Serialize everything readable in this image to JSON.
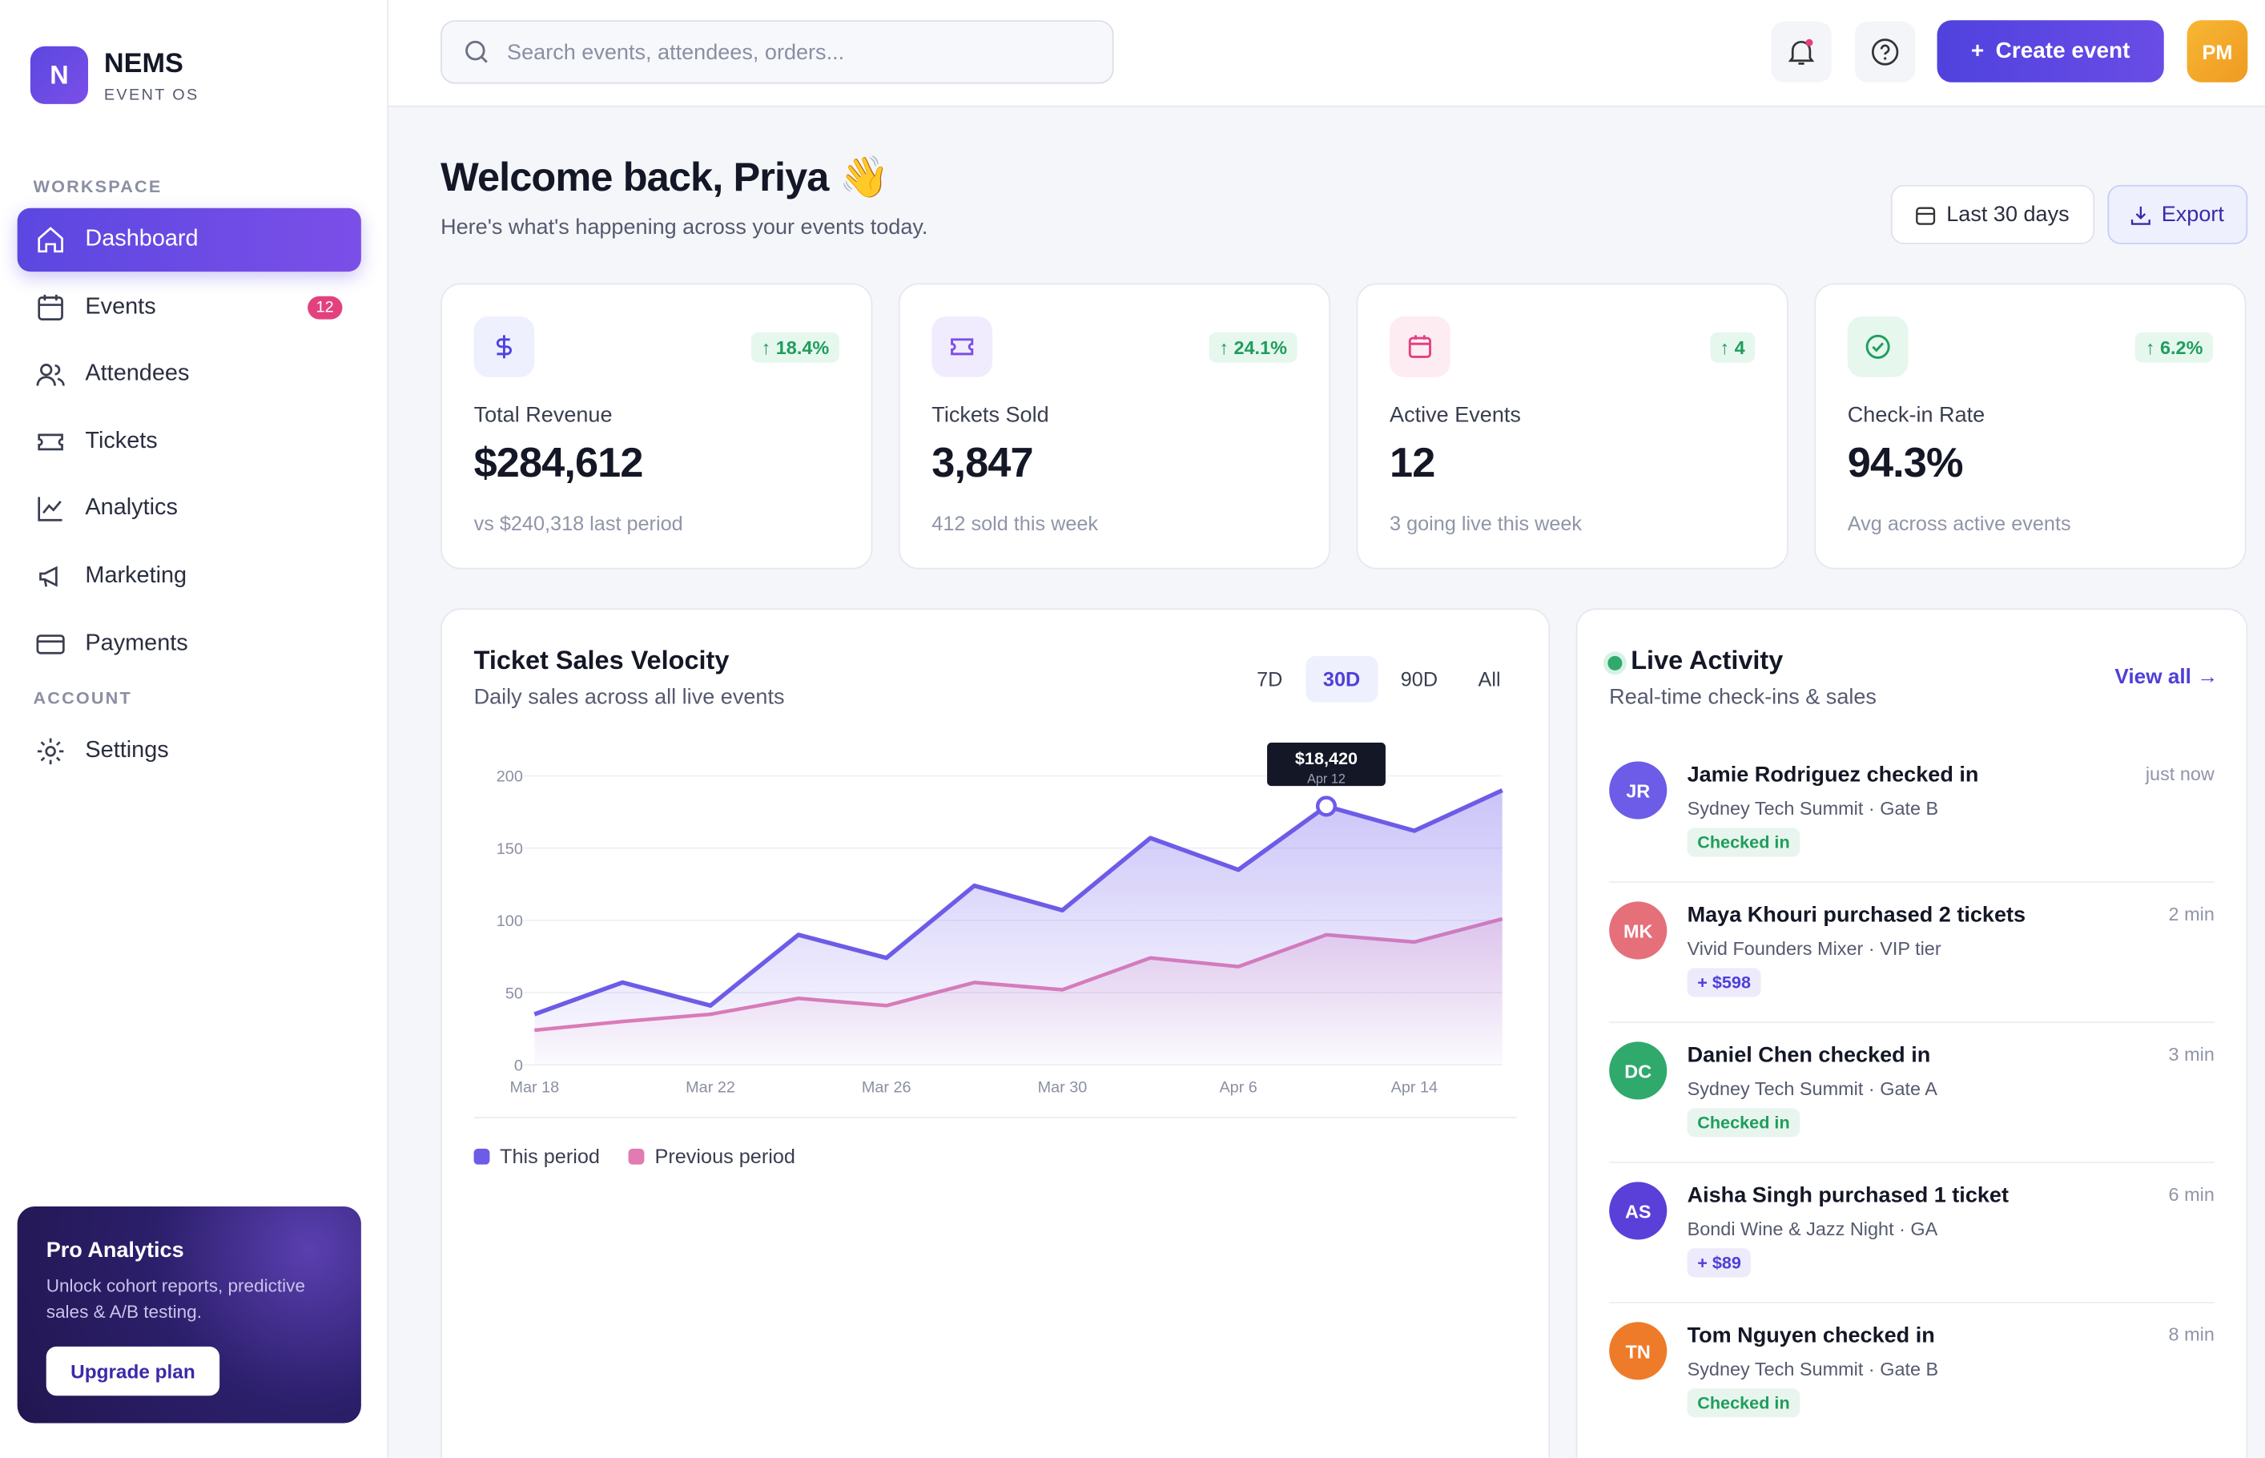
{
  "brand": {
    "logo": "N",
    "name": "NEMS",
    "tagline": "EVENT OS"
  },
  "sidebar": {
    "sections": [
      {
        "title": "WORKSPACE",
        "items": [
          {
            "label": "Dashboard",
            "active": true
          },
          {
            "label": "Events",
            "badge": 12
          },
          {
            "label": "Attendees"
          },
          {
            "label": "Tickets"
          },
          {
            "label": "Analytics"
          },
          {
            "label": "Marketing"
          },
          {
            "label": "Payments"
          }
        ]
      },
      {
        "title": "ACCOUNT",
        "items": [
          {
            "label": "Settings"
          }
        ]
      }
    ],
    "promo": {
      "title": "Pro Analytics",
      "text": "Unlock cohort reports, predictive sales & A/B testing.",
      "button": "Upgrade plan"
    }
  },
  "topbar": {
    "search_placeholder": "Search events, attendees, orders...",
    "create_button": "Create event",
    "avatar": "PM"
  },
  "header": {
    "title": "Welcome back, Priya 👋",
    "subtitle": "Here's what's happening across your events today.",
    "range_button": "Last 30 days",
    "export_button": "Export"
  },
  "stats": [
    {
      "label": "Total Revenue",
      "value": "$284,612",
      "change": "↑ 18.4%",
      "note": "vs $240,318 last period"
    },
    {
      "label": "Tickets Sold",
      "value": "3,847",
      "change": "↑ 24.1%",
      "note": "412 sold this week"
    },
    {
      "label": "Active Events",
      "value": "12",
      "change": "↑ 4",
      "note": "3 going live this week"
    },
    {
      "label": "Check-in Rate",
      "value": "94.3%",
      "change": "↑ 6.2%",
      "note": "Avg across active events"
    }
  ],
  "chart_data": {
    "type": "line",
    "title": "Ticket Sales Velocity",
    "subtitle": "Daily sales across all live events",
    "ranges": [
      {
        "label": "7D"
      },
      {
        "label": "30D",
        "active": true
      },
      {
        "label": "90D"
      },
      {
        "label": "All"
      }
    ],
    "categories": [
      "Mar 18",
      null,
      "Mar 22",
      null,
      "Mar 26",
      null,
      "Mar 30",
      null,
      "Apr 6",
      null,
      "Apr 14",
      null
    ],
    "series": [
      {
        "name": "This period",
        "color": "#6c5ce7",
        "values": [
          35,
          57,
          41,
          90,
          74,
          124,
          107,
          157,
          135,
          179,
          162,
          190
        ]
      },
      {
        "name": "Previous period",
        "color": "#e27bb1",
        "values": [
          24,
          30,
          35,
          46,
          41,
          57,
          52,
          74,
          68,
          90,
          85,
          101
        ]
      }
    ],
    "ylim": [
      0,
      200
    ],
    "yticks": [
      0,
      50,
      100,
      150,
      200
    ],
    "grid": true,
    "annotation": {
      "label": "$18,420",
      "sublabel": "Apr 12",
      "series": 0,
      "point": 9
    }
  },
  "activity": {
    "title": "Live Activity",
    "subtitle": "Real-time check-ins & sales",
    "view_all": "View all →",
    "items": [
      {
        "initials": "JR",
        "title": "Jamie Rodriguez checked in",
        "detail": "Sydney Tech Summit · Gate B",
        "tag": "Checked in",
        "time": "just now",
        "avatar_color": "#6c5ce7",
        "tag_color": "#1f9d5c"
      },
      {
        "initials": "MK",
        "title": "Maya Khouri purchased 2 tickets",
        "detail": "Vivid Founders Mixer · VIP tier",
        "tag": "+ $598",
        "time": "2 min",
        "avatar_color": "#e5707a",
        "tag_color": "#4f3fd8"
      },
      {
        "initials": "DC",
        "title": "Daniel Chen checked in",
        "detail": "Sydney Tech Summit · Gate A",
        "tag": "Checked in",
        "time": "3 min",
        "avatar_color": "#2faa6c",
        "tag_color": "#1f9d5c"
      },
      {
        "initials": "AS",
        "title": "Aisha Singh purchased 1 ticket",
        "detail": "Bondi Wine & Jazz Night · GA",
        "tag": "+ $89",
        "time": "6 min",
        "avatar_color": "#5b3fd9",
        "tag_color": "#4f3fd8"
      },
      {
        "initials": "TN",
        "title": "Tom Nguyen checked in",
        "detail": "Sydney Tech Summit · Gate B",
        "tag": "Checked in",
        "time": "8 min",
        "avatar_color": "#ee7b2a",
        "tag_color": "#1f9d5c"
      }
    ]
  }
}
